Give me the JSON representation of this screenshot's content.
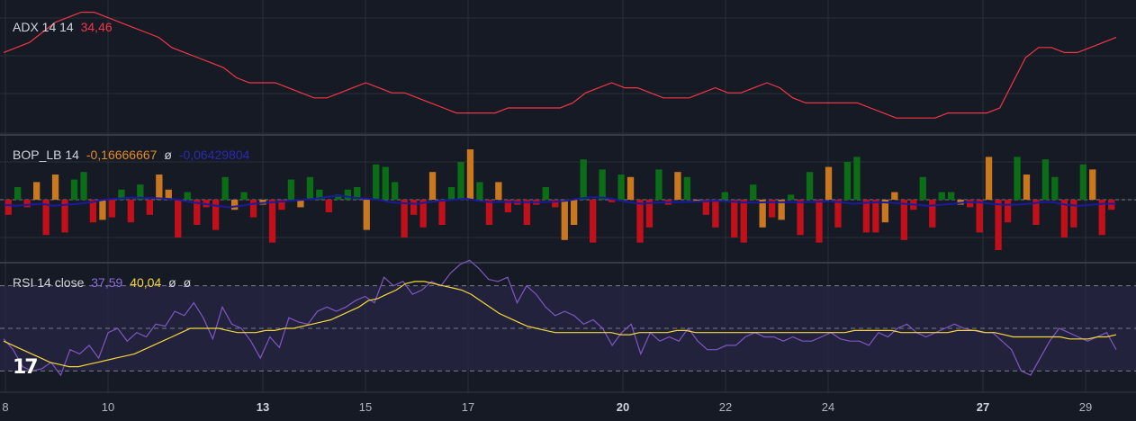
{
  "colors": {
    "background": "#161a25",
    "grid": "#2a2e39",
    "pane_border": "#363a45",
    "adx_line": "#f23645",
    "bop_green": "#0b6e17",
    "bop_red": "#c2101a",
    "bop_orange": "#c9781f",
    "bop_signal": "#1a1a9e",
    "rsi_line": "#7e57c2",
    "rsi_ma": "#f5d73a",
    "rsi_band": "#2a2647",
    "text": "#d1d4dc"
  },
  "legends": {
    "adx": {
      "name": "ADX 14 14",
      "value": "34,46"
    },
    "bop": {
      "name": "BOP_LB 14",
      "value1": "-0,16666667",
      "value2": "ø",
      "value3": "-0,06429804"
    },
    "rsi": {
      "name": "RSI 14 close",
      "value1": "37,59",
      "value2": "40,04",
      "value3": "ø",
      "value4": "ø"
    }
  },
  "logo": {
    "icon": "tradingview-logo-icon",
    "text": "17"
  },
  "chart_data": [
    {
      "type": "line",
      "name": "ADX 14 14",
      "ylim": [
        20,
        45
      ],
      "values": [
        36,
        37,
        38,
        40,
        42,
        43,
        44,
        44,
        43,
        42,
        41,
        40,
        39,
        37,
        36,
        35,
        34,
        33,
        31,
        30,
        30,
        30,
        29,
        28,
        27,
        27,
        28,
        29,
        30,
        29,
        28,
        28,
        27,
        26,
        25,
        24,
        24,
        24,
        24,
        25,
        25,
        25,
        25,
        25,
        26,
        28,
        29,
        30,
        29,
        29,
        28,
        27,
        27,
        27,
        28,
        29,
        28,
        28,
        29,
        30,
        29,
        27,
        26,
        26,
        26,
        26,
        26,
        25,
        24,
        23,
        23,
        23,
        23,
        24,
        24,
        24,
        24,
        25,
        30,
        35,
        37,
        37,
        36,
        36,
        37,
        38,
        39
      ]
    },
    {
      "type": "bar",
      "name": "BOP_LB 14",
      "ylim": [
        -1,
        1
      ],
      "values": [
        -0.3,
        0.25,
        -0.15,
        0.35,
        -0.7,
        0.5,
        -0.65,
        0.4,
        0.55,
        -0.45,
        -0.4,
        -0.35,
        0.2,
        -0.45,
        0.3,
        -0.3,
        0.5,
        0.2,
        -0.75,
        0.15,
        -0.5,
        -0.15,
        -0.6,
        0.45,
        -0.2,
        0.15,
        -0.35,
        -0.1,
        -0.85,
        -0.2,
        0.4,
        -0.15,
        0.45,
        0.2,
        -0.25,
        0.1,
        0.2,
        0.25,
        -0.6,
        0.7,
        0.65,
        0.35,
        -0.75,
        -0.3,
        -0.55,
        0.55,
        -0.5,
        0.25,
        0.75,
        1.0,
        0.35,
        -0.5,
        0.35,
        -0.25,
        -0.1,
        -0.5,
        -0.1,
        0.25,
        -0.15,
        -0.8,
        -0.5,
        0.8,
        -0.85,
        0.6,
        -0.05,
        0.5,
        0.45,
        -0.85,
        -0.55,
        0.6,
        -0.1,
        0.55,
        0.45,
        -0.05,
        -0.3,
        -0.55,
        0.15,
        -0.75,
        -0.85,
        0.3,
        -0.55,
        -0.35,
        -0.4,
        0.1,
        -0.7,
        0.55,
        -0.85,
        0.65,
        -0.55,
        0.75,
        0.85,
        -0.65,
        -0.65,
        -0.45,
        0.15,
        -0.8,
        -0.2,
        0.45,
        -0.55,
        0.15,
        0.15,
        -0.1,
        -0.15,
        -0.65,
        0.85,
        -1.0,
        -0.45,
        0.85,
        0.5,
        -0.5,
        0.8,
        0.45,
        -0.75,
        -0.55,
        0.7,
        0.6,
        -0.7,
        -0.2
      ]
    },
    {
      "type": "line",
      "name": "BOP_LB signal",
      "ylim": [
        -1,
        1
      ],
      "values": [
        -0.1,
        -0.12,
        -0.1,
        -0.08,
        -0.12,
        -0.1,
        -0.08,
        -0.05,
        0.0,
        0.02,
        0.04,
        0.04,
        0.03,
        0.02,
        0.0,
        -0.05,
        -0.08,
        -0.12,
        -0.15,
        -0.12,
        -0.08,
        -0.06,
        -0.04,
        -0.02,
        0.0,
        0.02,
        0.06,
        0.08,
        0.04,
        0.02,
        0.0,
        -0.05,
        -0.07,
        -0.08,
        -0.05,
        -0.02,
        0.0,
        0.02,
        -0.02,
        -0.05,
        -0.04,
        -0.05,
        -0.05,
        -0.05,
        -0.04,
        -0.02,
        0.02,
        0.05,
        0.04,
        0.0,
        -0.05,
        -0.08,
        -0.06,
        -0.05,
        -0.05,
        -0.04,
        -0.03,
        -0.02,
        -0.03,
        -0.05,
        -0.06,
        -0.05,
        -0.05,
        -0.05,
        -0.05,
        -0.04,
        -0.03,
        -0.05,
        -0.08,
        -0.06,
        -0.05,
        -0.06,
        -0.08,
        -0.1,
        -0.12,
        -0.1,
        -0.08,
        -0.05,
        -0.05,
        -0.08,
        -0.1,
        -0.1,
        -0.08,
        -0.05,
        -0.05,
        -0.1,
        -0.12,
        -0.1,
        -0.08,
        -0.08
      ]
    },
    {
      "type": "line",
      "name": "RSI 14 close",
      "ylim": [
        20,
        80
      ],
      "hlines": [
        70,
        50,
        30
      ],
      "values": [
        45,
        40,
        32,
        30,
        31,
        34,
        28,
        40,
        38,
        42,
        36,
        48,
        50,
        44,
        48,
        46,
        52,
        51,
        58,
        56,
        62,
        55,
        45,
        60,
        52,
        50,
        44,
        36,
        46,
        41,
        55,
        53,
        52,
        58,
        60,
        58,
        60,
        63,
        65,
        62,
        74,
        70,
        72,
        66,
        68,
        72,
        70,
        76,
        80,
        82,
        78,
        73,
        72,
        74,
        62,
        70,
        66,
        60,
        56,
        58,
        56,
        52,
        54,
        50,
        42,
        48,
        52,
        38,
        48,
        44,
        46,
        44,
        50,
        44,
        40,
        40,
        42,
        42,
        46,
        48,
        46,
        46,
        44,
        46,
        44,
        44,
        46,
        48,
        45,
        44,
        44,
        42,
        48,
        46,
        50,
        52,
        48,
        46,
        48,
        50,
        52,
        50,
        49,
        48,
        48,
        44,
        40,
        30,
        28,
        36,
        44,
        50,
        48,
        46,
        44,
        46,
        48,
        40
      ]
    },
    {
      "type": "line",
      "name": "RSI MA",
      "ylim": [
        20,
        80
      ],
      "values": [
        44,
        42,
        40,
        38,
        36,
        34,
        33,
        32,
        32,
        33,
        34,
        35,
        36,
        37,
        38,
        40,
        42,
        44,
        46,
        48,
        50,
        50,
        50,
        50,
        49,
        48,
        48,
        48,
        49,
        49,
        50,
        50,
        51,
        52,
        53,
        54,
        56,
        58,
        60,
        63,
        64,
        66,
        68,
        71,
        72,
        72,
        71,
        70,
        69,
        68,
        66,
        63,
        60,
        57,
        55,
        53,
        51,
        50,
        49,
        48,
        48,
        48,
        48,
        48,
        48,
        48,
        47,
        47,
        48,
        48,
        48,
        48,
        49,
        49,
        48,
        48,
        48,
        48,
        48,
        48,
        48,
        48,
        48,
        48,
        48,
        48,
        48,
        48,
        48,
        48,
        48,
        49,
        49,
        49,
        49,
        49,
        48,
        48,
        48,
        48,
        48,
        48,
        49,
        49,
        49,
        48,
        48,
        47,
        46,
        46,
        46,
        46,
        46,
        46,
        45,
        45,
        45,
        46,
        46,
        47
      ]
    }
  ],
  "xaxis": {
    "ticks": [
      {
        "label": "8",
        "bold": false
      },
      {
        "label": "10",
        "bold": false
      },
      {
        "label": "13",
        "bold": true
      },
      {
        "label": "15",
        "bold": false
      },
      {
        "label": "17",
        "bold": false
      },
      {
        "label": "20",
        "bold": true
      },
      {
        "label": "22",
        "bold": false
      },
      {
        "label": "24",
        "bold": false
      },
      {
        "label": "27",
        "bold": true
      },
      {
        "label": "29",
        "bold": false
      }
    ]
  }
}
